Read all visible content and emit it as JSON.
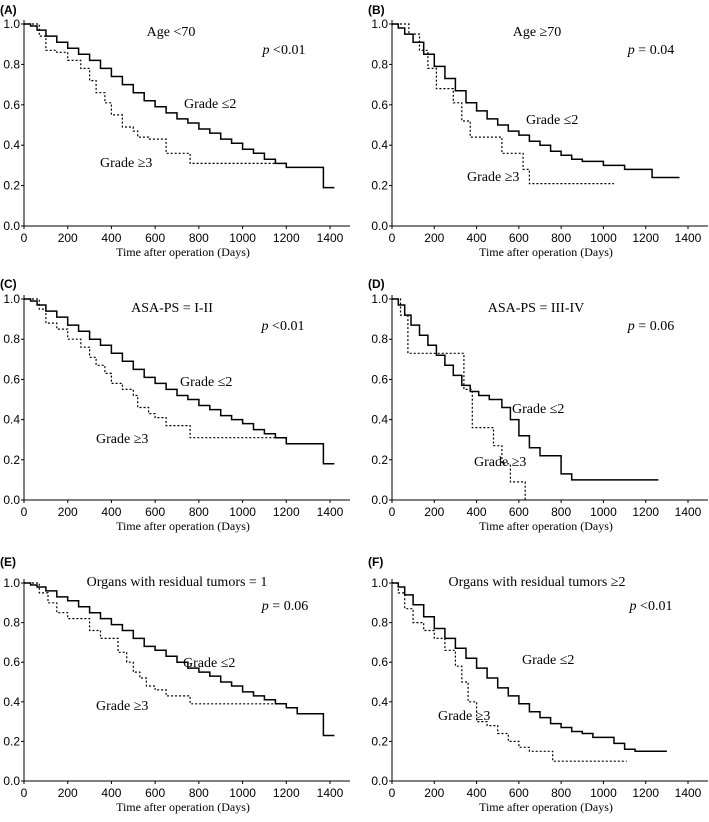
{
  "figure": {
    "x_label": "Time after operation (Days)"
  },
  "chart_data": [
    {
      "type": "line",
      "panel": "(A)",
      "title": "Age <70",
      "p_value": "p <0.01",
      "xlabel": "Time after operation (Days)",
      "ylabel": "",
      "xlim": [
        0,
        1400
      ],
      "ylim": [
        0,
        1.0
      ],
      "x_ticks": [
        0,
        200,
        400,
        600,
        800,
        1000,
        1200,
        1400
      ],
      "y_ticks": [
        "0.0",
        "0.2",
        "0.4",
        "0.6",
        "0.8",
        "1.0"
      ],
      "series": [
        {
          "name": "Grade ≤2",
          "style": "solid",
          "x": [
            0,
            30,
            60,
            100,
            150,
            200,
            250,
            300,
            350,
            400,
            450,
            500,
            550,
            600,
            650,
            700,
            750,
            800,
            850,
            900,
            950,
            1000,
            1050,
            1100,
            1150,
            1200,
            1370,
            1370,
            1420
          ],
          "y": [
            1.0,
            0.99,
            0.97,
            0.94,
            0.91,
            0.88,
            0.85,
            0.82,
            0.78,
            0.74,
            0.7,
            0.66,
            0.62,
            0.59,
            0.56,
            0.53,
            0.51,
            0.48,
            0.46,
            0.43,
            0.41,
            0.38,
            0.36,
            0.33,
            0.31,
            0.29,
            0.29,
            0.19,
            0.19
          ]
        },
        {
          "name": "Grade ≥3",
          "style": "dotted",
          "x": [
            0,
            70,
            100,
            150,
            200,
            260,
            300,
            330,
            370,
            400,
            450,
            500,
            520,
            570,
            600,
            650,
            700,
            750,
            760,
            1150
          ],
          "y": [
            1.0,
            0.94,
            0.87,
            0.86,
            0.82,
            0.78,
            0.72,
            0.66,
            0.61,
            0.55,
            0.49,
            0.47,
            0.44,
            0.43,
            0.43,
            0.36,
            0.36,
            0.36,
            0.31,
            0.31
          ]
        }
      ],
      "annotations": [
        {
          "text": "Grade ≤2",
          "near_series": "Grade ≤2"
        },
        {
          "text": "Grade ≥3",
          "near_series": "Grade ≥3"
        }
      ]
    },
    {
      "type": "line",
      "panel": "(B)",
      "title": "Age ≥70",
      "p_value": "p = 0.04",
      "xlabel": "Time after operation (Days)",
      "ylabel": "",
      "xlim": [
        0,
        1400
      ],
      "ylim": [
        0,
        1.0
      ],
      "x_ticks": [
        0,
        200,
        400,
        600,
        800,
        1000,
        1200,
        1400
      ],
      "y_ticks": [
        "0.0",
        "0.2",
        "0.4",
        "0.6",
        "0.8",
        "1.0"
      ],
      "series": [
        {
          "name": "Grade ≤2",
          "style": "solid",
          "x": [
            0,
            30,
            60,
            100,
            150,
            200,
            250,
            300,
            350,
            400,
            450,
            500,
            550,
            600,
            650,
            700,
            750,
            800,
            850,
            900,
            1000,
            1100,
            1230,
            1230,
            1360
          ],
          "y": [
            1.0,
            0.98,
            0.95,
            0.91,
            0.85,
            0.79,
            0.73,
            0.67,
            0.61,
            0.57,
            0.53,
            0.5,
            0.47,
            0.45,
            0.42,
            0.4,
            0.37,
            0.35,
            0.33,
            0.32,
            0.3,
            0.28,
            0.28,
            0.24,
            0.24
          ]
        },
        {
          "name": "Grade ≥3",
          "style": "dotted",
          "x": [
            0,
            80,
            130,
            170,
            210,
            250,
            290,
            330,
            370,
            420,
            460,
            520,
            560,
            620,
            650,
            1050
          ],
          "y": [
            1.0,
            0.95,
            0.87,
            0.78,
            0.68,
            0.68,
            0.61,
            0.52,
            0.44,
            0.44,
            0.44,
            0.36,
            0.36,
            0.28,
            0.21,
            0.21
          ]
        }
      ],
      "annotations": [
        {
          "text": "Grade ≤2",
          "near_series": "Grade ≤2"
        },
        {
          "text": "Grade ≥3",
          "near_series": "Grade ≥3"
        }
      ]
    },
    {
      "type": "line",
      "panel": "(C)",
      "title": "ASA-PS = I-II",
      "p_value": "p <0.01",
      "xlabel": "Time after operation (Days)",
      "ylabel": "",
      "xlim": [
        0,
        1400
      ],
      "ylim": [
        0,
        1.0
      ],
      "x_ticks": [
        0,
        200,
        400,
        600,
        800,
        1000,
        1200,
        1400
      ],
      "y_ticks": [
        "0.0",
        "0.2",
        "0.4",
        "0.6",
        "0.8",
        "1.0"
      ],
      "series": [
        {
          "name": "Grade ≤2",
          "style": "solid",
          "x": [
            0,
            30,
            60,
            100,
            150,
            200,
            250,
            300,
            350,
            400,
            450,
            500,
            550,
            600,
            650,
            700,
            750,
            800,
            850,
            900,
            950,
            1000,
            1050,
            1100,
            1150,
            1200,
            1370,
            1370,
            1420
          ],
          "y": [
            1.0,
            0.99,
            0.97,
            0.94,
            0.91,
            0.87,
            0.84,
            0.8,
            0.77,
            0.73,
            0.69,
            0.65,
            0.61,
            0.58,
            0.55,
            0.52,
            0.5,
            0.47,
            0.45,
            0.42,
            0.4,
            0.38,
            0.35,
            0.33,
            0.31,
            0.28,
            0.28,
            0.18,
            0.18
          ]
        },
        {
          "name": "Grade ≥3",
          "style": "dotted",
          "x": [
            0,
            70,
            100,
            150,
            200,
            260,
            300,
            330,
            370,
            400,
            450,
            500,
            520,
            570,
            600,
            650,
            700,
            750,
            760,
            1150
          ],
          "y": [
            1.0,
            0.95,
            0.88,
            0.85,
            0.8,
            0.76,
            0.71,
            0.67,
            0.63,
            0.58,
            0.55,
            0.52,
            0.46,
            0.43,
            0.41,
            0.37,
            0.37,
            0.37,
            0.31,
            0.31
          ]
        }
      ],
      "annotations": [
        {
          "text": "Grade ≤2",
          "near_series": "Grade ≤2"
        },
        {
          "text": "Grade ≥3",
          "near_series": "Grade ≥3"
        }
      ]
    },
    {
      "type": "line",
      "panel": "(D)",
      "title": "ASA-PS = III-IV",
      "p_value": "p = 0.06",
      "xlabel": "Time after operation (Days)",
      "ylabel": "",
      "xlim": [
        0,
        1400
      ],
      "ylim": [
        0,
        1.0
      ],
      "x_ticks": [
        0,
        200,
        400,
        600,
        800,
        1000,
        1200,
        1400
      ],
      "y_ticks": [
        "0.0",
        "0.2",
        "0.4",
        "0.6",
        "0.8",
        "1.0"
      ],
      "series": [
        {
          "name": "Grade ≤2",
          "style": "solid",
          "x": [
            0,
            30,
            60,
            90,
            130,
            170,
            210,
            250,
            290,
            330,
            370,
            410,
            460,
            520,
            560,
            600,
            650,
            700,
            760,
            800,
            850,
            1260
          ],
          "y": [
            1.0,
            0.97,
            0.92,
            0.87,
            0.82,
            0.77,
            0.72,
            0.67,
            0.62,
            0.57,
            0.54,
            0.52,
            0.5,
            0.46,
            0.4,
            0.32,
            0.26,
            0.22,
            0.22,
            0.13,
            0.1,
            0.1
          ]
        },
        {
          "name": "Grade ≥3",
          "style": "dotted",
          "x": [
            0,
            40,
            75,
            75,
            150,
            300,
            340,
            380,
            440,
            480,
            500,
            520,
            560,
            610,
            630,
            630
          ],
          "y": [
            1.0,
            0.92,
            0.92,
            0.73,
            0.73,
            0.73,
            0.55,
            0.36,
            0.36,
            0.27,
            0.27,
            0.18,
            0.09,
            0.09,
            0.09,
            0.0
          ]
        }
      ],
      "annotations": [
        {
          "text": "Grade ≤2",
          "near_series": "Grade ≤2"
        },
        {
          "text": "Grade ≥3",
          "near_series": "Grade ≥3"
        }
      ]
    },
    {
      "type": "line",
      "panel": "(E)",
      "title": "Organs with residual tumors = 1",
      "p_value": "p = 0.06",
      "xlabel": "Time after operation (Days)",
      "ylabel": "",
      "xlim": [
        0,
        1400
      ],
      "ylim": [
        0,
        1.0
      ],
      "x_ticks": [
        0,
        200,
        400,
        600,
        800,
        1000,
        1200,
        1400
      ],
      "y_ticks": [
        "0.0",
        "0.2",
        "0.4",
        "0.6",
        "0.8",
        "1.0"
      ],
      "series": [
        {
          "name": "Grade ≤2",
          "style": "solid",
          "x": [
            0,
            30,
            60,
            100,
            150,
            200,
            250,
            300,
            350,
            400,
            450,
            500,
            550,
            600,
            650,
            700,
            750,
            800,
            850,
            900,
            950,
            1000,
            1050,
            1100,
            1150,
            1200,
            1250,
            1370,
            1370,
            1420
          ],
          "y": [
            1.0,
            0.99,
            0.98,
            0.96,
            0.93,
            0.91,
            0.88,
            0.85,
            0.82,
            0.79,
            0.76,
            0.72,
            0.68,
            0.66,
            0.63,
            0.6,
            0.57,
            0.55,
            0.53,
            0.5,
            0.48,
            0.45,
            0.43,
            0.41,
            0.39,
            0.37,
            0.34,
            0.34,
            0.23,
            0.23
          ]
        },
        {
          "name": "Grade ≥3",
          "style": "dotted",
          "x": [
            0,
            70,
            110,
            150,
            200,
            260,
            300,
            350,
            400,
            430,
            470,
            500,
            530,
            560,
            600,
            650,
            700,
            760,
            1150
          ],
          "y": [
            1.0,
            0.95,
            0.9,
            0.85,
            0.82,
            0.82,
            0.76,
            0.72,
            0.72,
            0.65,
            0.6,
            0.55,
            0.52,
            0.48,
            0.46,
            0.43,
            0.43,
            0.39,
            0.39
          ]
        }
      ],
      "annotations": [
        {
          "text": "Grade ≤2",
          "near_series": "Grade ≤2"
        },
        {
          "text": "Grade ≥3",
          "near_series": "Grade ≥3"
        }
      ]
    },
    {
      "type": "line",
      "panel": "(F)",
      "title": "Organs with residual tumors ≥2",
      "p_value": "p <0.01",
      "xlabel": "Time after operation (Days)",
      "ylabel": "",
      "xlim": [
        0,
        1400
      ],
      "ylim": [
        0,
        1.0
      ],
      "x_ticks": [
        0,
        200,
        400,
        600,
        800,
        1000,
        1200,
        1400
      ],
      "y_ticks": [
        "0.0",
        "0.2",
        "0.4",
        "0.6",
        "0.8",
        "1.0"
      ],
      "series": [
        {
          "name": "Grade ≤2",
          "style": "solid",
          "x": [
            0,
            30,
            60,
            100,
            150,
            200,
            250,
            300,
            350,
            400,
            450,
            500,
            550,
            600,
            650,
            700,
            750,
            800,
            850,
            900,
            950,
            1000,
            1050,
            1100,
            1150,
            1300
          ],
          "y": [
            1.0,
            0.98,
            0.94,
            0.89,
            0.83,
            0.77,
            0.72,
            0.67,
            0.62,
            0.57,
            0.52,
            0.47,
            0.43,
            0.39,
            0.35,
            0.32,
            0.29,
            0.27,
            0.25,
            0.24,
            0.22,
            0.22,
            0.19,
            0.16,
            0.15,
            0.15
          ]
        },
        {
          "name": "Grade ≥3",
          "style": "dotted",
          "x": [
            0,
            30,
            60,
            100,
            150,
            200,
            250,
            300,
            330,
            360,
            400,
            450,
            500,
            550,
            600,
            650,
            700,
            740,
            760,
            1110
          ],
          "y": [
            1.0,
            0.95,
            0.87,
            0.8,
            0.76,
            0.72,
            0.66,
            0.58,
            0.5,
            0.4,
            0.3,
            0.28,
            0.24,
            0.2,
            0.17,
            0.15,
            0.15,
            0.15,
            0.1,
            0.1
          ]
        }
      ],
      "annotations": [
        {
          "text": "Grade ≤2",
          "near_series": "Grade ≤2"
        },
        {
          "text": "Grade ≥3",
          "near_series": "Grade ≥3"
        }
      ]
    }
  ]
}
